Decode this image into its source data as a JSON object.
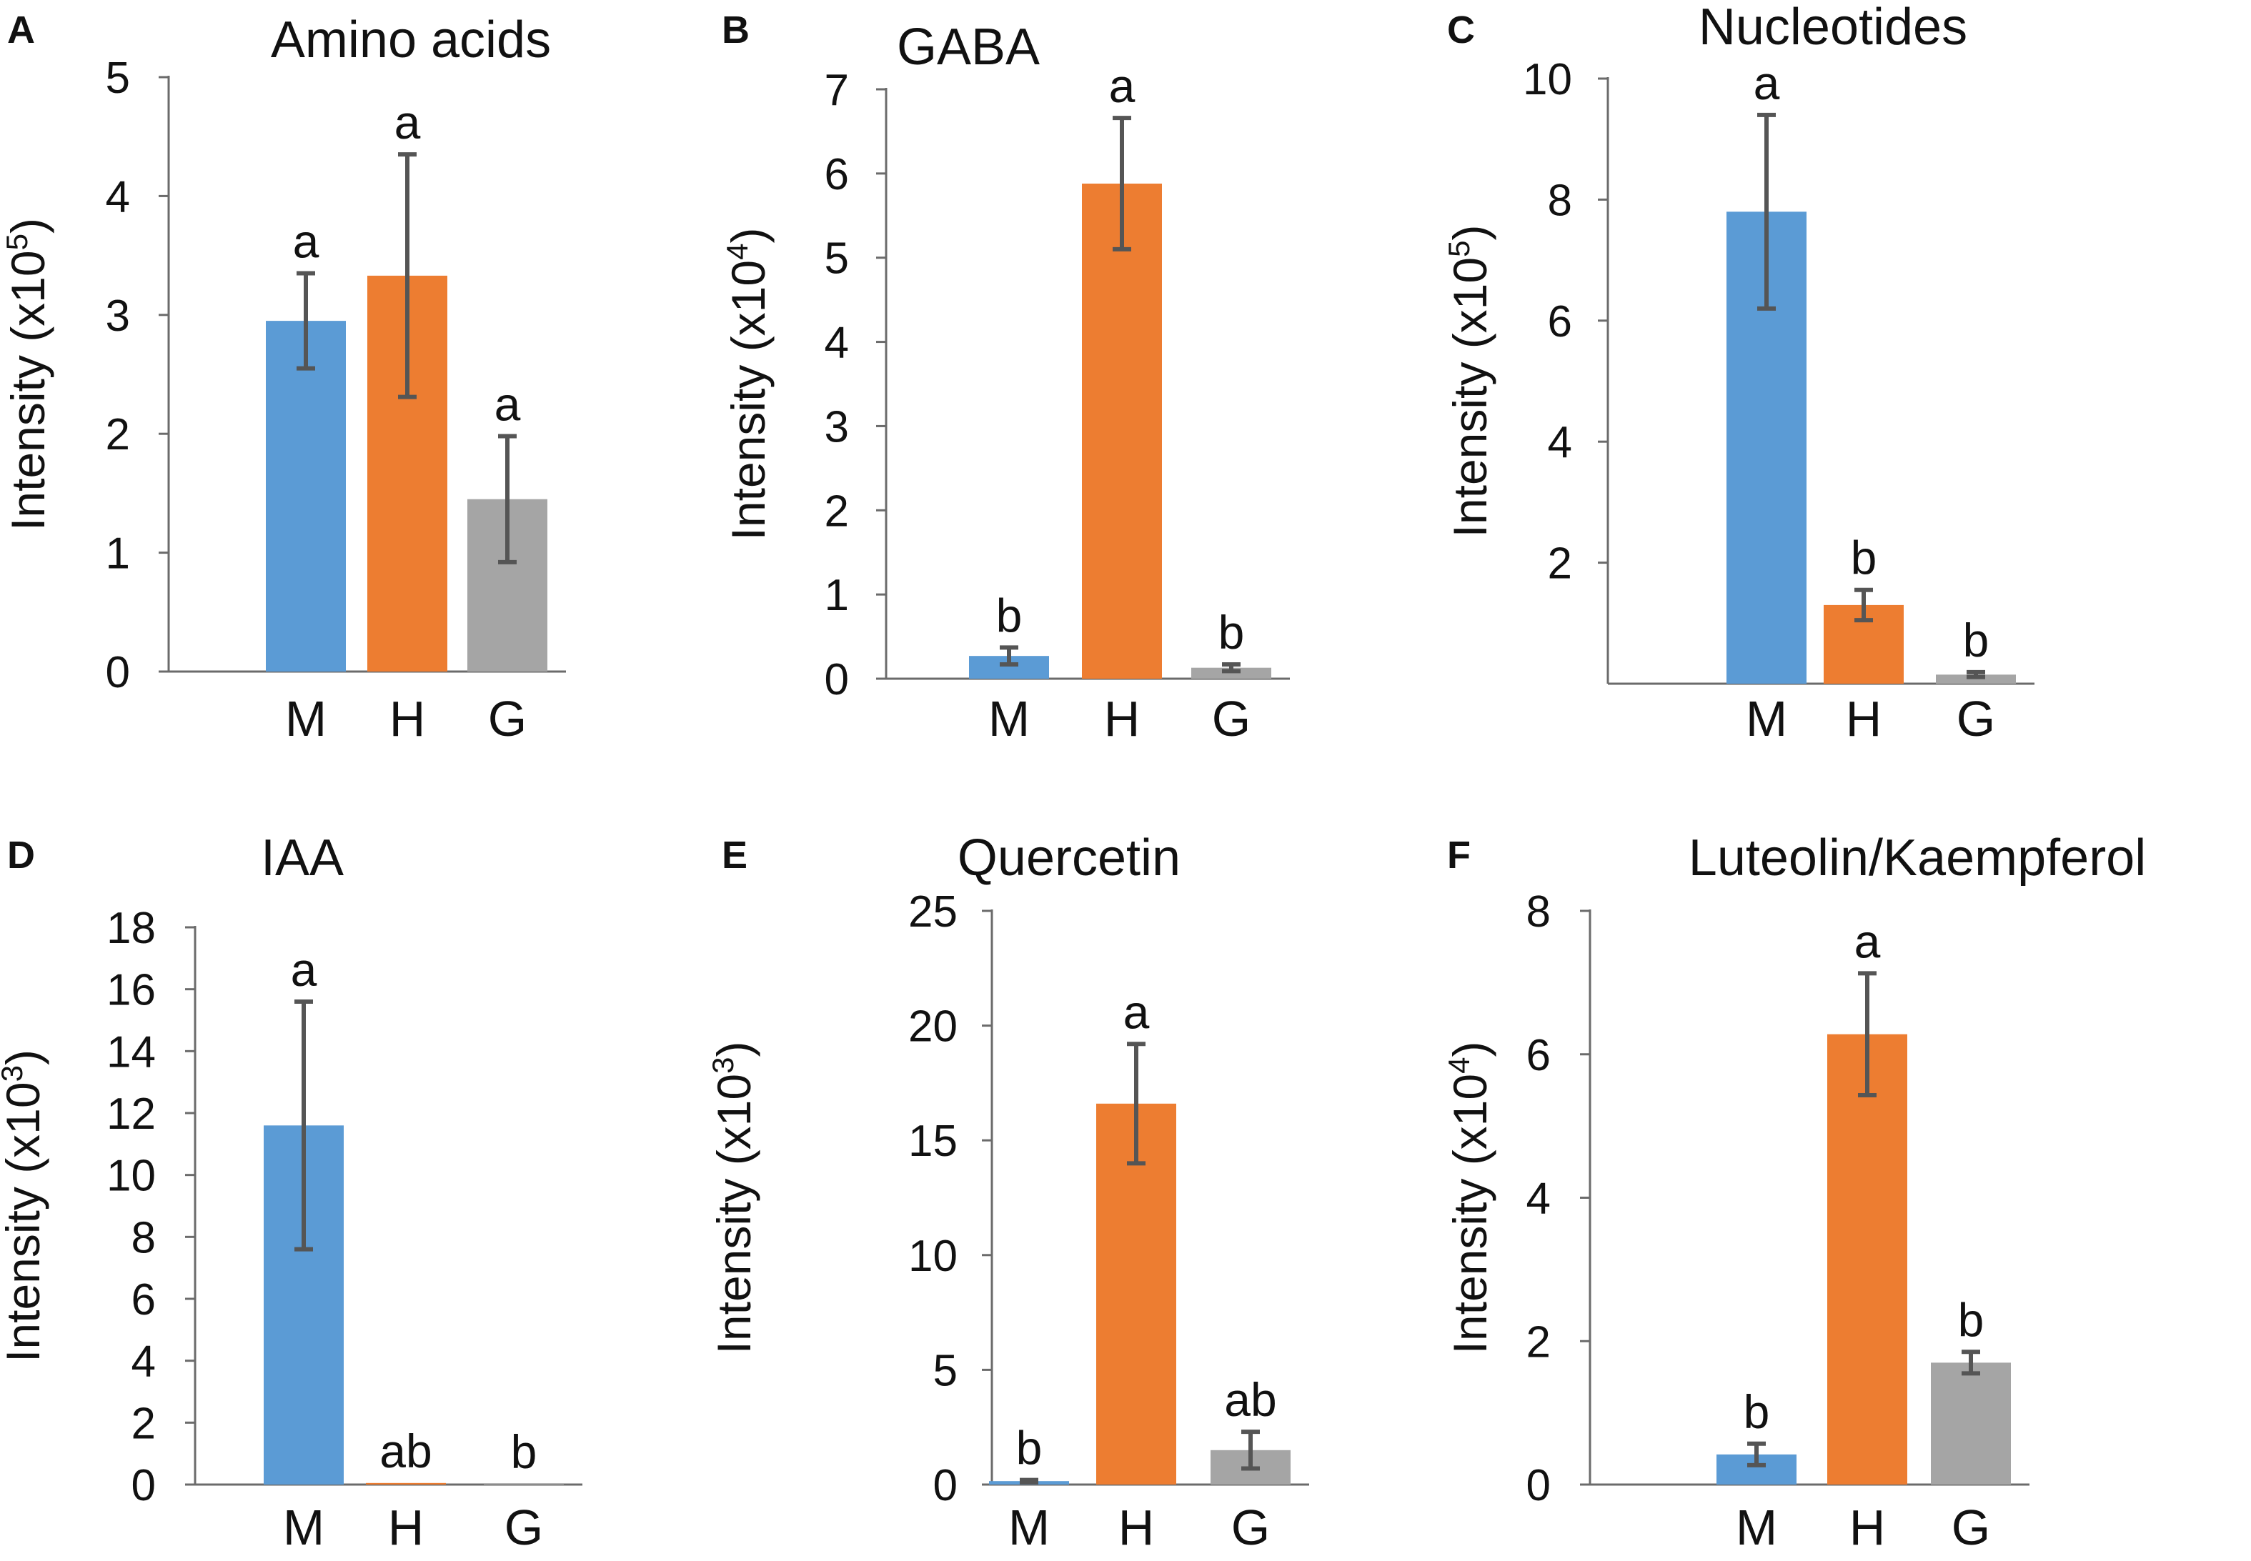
{
  "figure": {
    "colors": {
      "M": "#5b9bd5",
      "H": "#ed7d31",
      "G": "#a5a5a5",
      "error_bar": "#555555",
      "axis": "#6b6b6b"
    }
  },
  "chart_data": [
    {
      "panel": "A",
      "type": "bar",
      "title": "Amino acids",
      "ylabel_prefix": "Intensity (x10",
      "ylabel_exp": "5",
      "ylabel_suffix": ")",
      "categories": [
        "M",
        "H",
        "G"
      ],
      "values": [
        2.95,
        3.33,
        1.45
      ],
      "errors": [
        0.4,
        1.02,
        0.53
      ],
      "significance": [
        "a",
        "a",
        "a"
      ],
      "ylim": [
        0,
        5
      ],
      "yticks": [
        0,
        1,
        2,
        3,
        4,
        5
      ],
      "ytick_labels": [
        "0",
        "1",
        "2",
        "3",
        "4",
        "5"
      ]
    },
    {
      "panel": "B",
      "type": "bar",
      "title": "GABA",
      "ylabel_prefix": "Intensity (x10",
      "ylabel_exp": "4",
      "ylabel_suffix": ")",
      "categories": [
        "M",
        "H",
        "G"
      ],
      "values": [
        0.27,
        5.88,
        0.13
      ],
      "errors": [
        0.1,
        0.78,
        0.04
      ],
      "significance": [
        "b",
        "a",
        "b"
      ],
      "ylim": [
        0,
        7
      ],
      "yticks": [
        0,
        1,
        2,
        3,
        4,
        5,
        6,
        7
      ],
      "ytick_labels": [
        "0",
        "1",
        "2",
        "3",
        "4",
        "5",
        "6",
        "7"
      ]
    },
    {
      "panel": "C",
      "type": "bar",
      "title": "Nucleotides",
      "ylabel_prefix": "Intensity (x10",
      "ylabel_exp": "5",
      "ylabel_suffix": ")",
      "categories": [
        "M",
        "H",
        "G"
      ],
      "values": [
        7.8,
        1.3,
        0.15
      ],
      "errors": [
        1.6,
        0.25,
        0.04
      ],
      "significance": [
        "a",
        "b",
        "b"
      ],
      "ylim": [
        0,
        10
      ],
      "yticks": [
        2,
        4,
        6,
        8,
        10
      ],
      "ytick_labels": [
        "2",
        "4",
        "6",
        "8",
        "10"
      ]
    },
    {
      "panel": "D",
      "type": "bar",
      "title": "IAA",
      "ylabel_prefix": "Intensity (x10",
      "ylabel_exp": "3",
      "ylabel_suffix": ")",
      "categories": [
        "M",
        "H",
        "G"
      ],
      "values": [
        11.6,
        0.05,
        0.02
      ],
      "errors": [
        4.0,
        0.0,
        0.0
      ],
      "significance": [
        "a",
        "ab",
        "b"
      ],
      "ylim": [
        0,
        18
      ],
      "yticks": [
        0,
        2,
        4,
        6,
        8,
        10,
        12,
        14,
        16,
        18
      ],
      "ytick_labels": [
        "0",
        "2",
        "4",
        "6",
        "8",
        "10",
        "12",
        "14",
        "16",
        "18"
      ]
    },
    {
      "panel": "E",
      "type": "bar",
      "title": "Quercetin",
      "ylabel_prefix": "Intensity (x10",
      "ylabel_exp": "3",
      "ylabel_suffix": ")",
      "categories": [
        "M",
        "H",
        "G"
      ],
      "values": [
        0.15,
        16.6,
        1.5
      ],
      "errors": [
        0.05,
        2.6,
        0.8
      ],
      "significance": [
        "b",
        "a",
        "ab"
      ],
      "ylim": [
        0,
        25
      ],
      "yticks": [
        0,
        5,
        10,
        15,
        20,
        25
      ],
      "ytick_labels": [
        "0",
        "5",
        "10",
        "15",
        "20",
        "25"
      ]
    },
    {
      "panel": "F",
      "type": "bar",
      "title": "Luteolin/Kaempferol",
      "ylabel_prefix": "Intensity (x10",
      "ylabel_exp": "4",
      "ylabel_suffix": ")",
      "categories": [
        "M",
        "H",
        "G"
      ],
      "values": [
        0.42,
        6.28,
        1.7
      ],
      "errors": [
        0.15,
        0.85,
        0.15
      ],
      "significance": [
        "b",
        "a",
        "b"
      ],
      "ylim": [
        0,
        8
      ],
      "yticks": [
        0,
        2,
        4,
        6,
        8
      ],
      "ytick_labels": [
        "0",
        "2",
        "4",
        "6",
        "8"
      ]
    }
  ]
}
